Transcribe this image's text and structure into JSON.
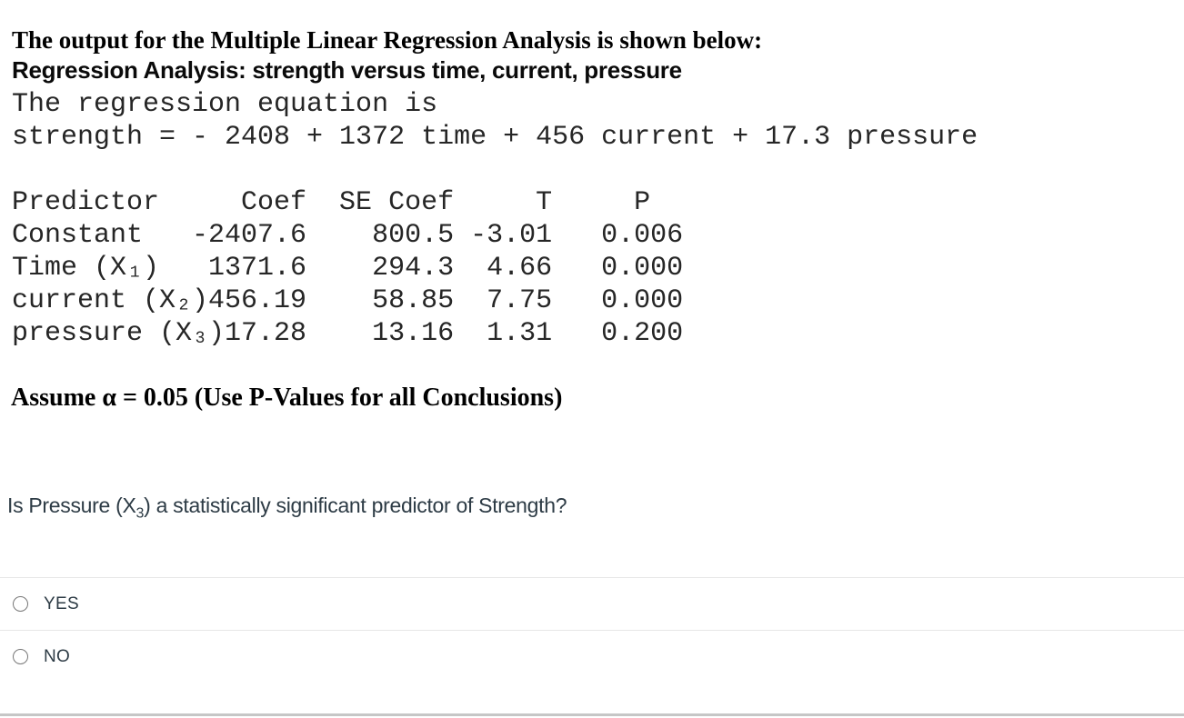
{
  "colors": {
    "heading_text": "#000000",
    "mono_text": "#262626",
    "question_text": "#2d3b45",
    "divider": "#e7e7e7",
    "bottom_bar": "#c6c6c6",
    "radio_border": "#777777"
  },
  "exhibit": {
    "title_line": "The output for the Multiple Linear Regression Analysis is shown below:",
    "analysis_heading": "Regression Analysis: strength versus time, current, pressure",
    "equation_intro": "The regression equation is",
    "equation": "strength = - 2408 + 1372 time + 456 current + 17.3 pressure",
    "table": {
      "headers": [
        "Predictor",
        "Coef",
        "SE Coef",
        "T",
        "P"
      ],
      "rows": [
        {
          "predictor": "Constant",
          "coef": "-2407.6",
          "se_coef": "800.5",
          "t": "-3.01",
          "p": "0.006"
        },
        {
          "predictor": "Time (X₁)",
          "coef": "1371.6",
          "se_coef": "294.3",
          "t": "4.66",
          "p": "0.000"
        },
        {
          "predictor": "current (X₂)",
          "coef": "456.19",
          "se_coef": "58.85",
          "t": "7.75",
          "p": "0.000"
        },
        {
          "predictor": "pressure (X₃)",
          "coef": "17.28",
          "se_coef": "13.16",
          "t": "1.31",
          "p": "0.200"
        }
      ]
    },
    "assumption": "Assume α = 0.05 (Use P-Values for all Conclusions)"
  },
  "question": {
    "prefix": "Is Pressure (X",
    "subscript": "3",
    "suffix": ") a statistically significant predictor of Strength?"
  },
  "answers": [
    {
      "label": "YES",
      "selected": false
    },
    {
      "label": "NO",
      "selected": false
    }
  ]
}
